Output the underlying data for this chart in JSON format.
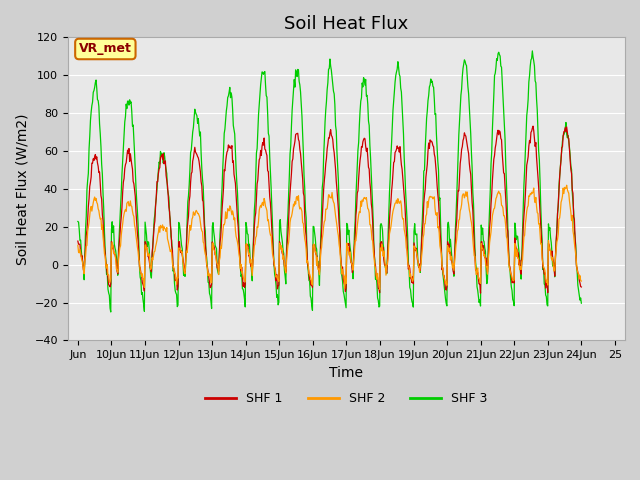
{
  "title": "Soil Heat Flux",
  "xlabel": "Time",
  "ylabel": "Soil Heat Flux (W/m2)",
  "ylim": [
    -40,
    120
  ],
  "yticks": [
    -40,
    -20,
    0,
    20,
    40,
    60,
    80,
    100,
    120
  ],
  "xtick_labels": [
    "Jun",
    "10Jun",
    "11Jun",
    "12Jun",
    "13Jun",
    "14Jun",
    "15Jun",
    "16Jun",
    "17Jun",
    "18Jun",
    "19Jun",
    "20Jun",
    "21Jun",
    "22Jun",
    "23Jun",
    "24Jun",
    "25"
  ],
  "legend_labels": [
    "SHF 1",
    "SHF 2",
    "SHF 3"
  ],
  "shf1_color": "#cc0000",
  "shf2_color": "#ff9900",
  "shf3_color": "#00cc00",
  "annotation_text": "VR_met",
  "annotation_bg": "#ffff99",
  "annotation_border": "#cc6600",
  "plot_bg": "#e8e8e8",
  "grid_color": "#ffffff",
  "title_fontsize": 13,
  "axis_label_fontsize": 10,
  "tick_fontsize": 8,
  "shf3_peaks": [
    95,
    88,
    59,
    80,
    91,
    101,
    103,
    105,
    97,
    104,
    97,
    106,
    113,
    110,
    72
  ],
  "shf1_amps": [
    58,
    59,
    57,
    60,
    63,
    65,
    68,
    69,
    66,
    63,
    66,
    68,
    70,
    71,
    72
  ],
  "shf2_amps": [
    35,
    33,
    20,
    27,
    30,
    33,
    35,
    36,
    35,
    35,
    36,
    37,
    38,
    39,
    40
  ]
}
